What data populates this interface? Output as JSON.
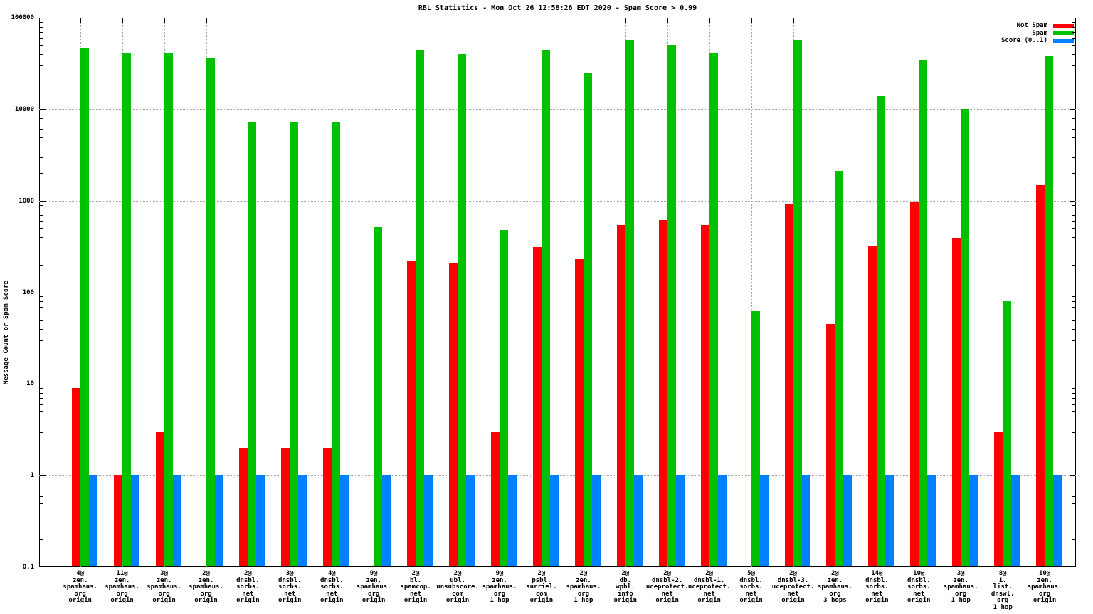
{
  "title": "RBL Statistics - Mon Oct 26 12:58:26 EDT 2020 - Spam Score > 0.99",
  "y_axis_label": "Message Count or Spam Score",
  "legend": [
    {
      "label": "Not Spam",
      "color": "#ff0000"
    },
    {
      "label": "Spam",
      "color": "#00c000"
    },
    {
      "label": "Score (0..1)",
      "color": "#0080ff"
    }
  ],
  "colors": {
    "not_spam": "#ff0000",
    "spam": "#00c000",
    "score": "#0080ff",
    "grid": "#a6a6a6",
    "border": "#000000",
    "background": "#ffffff"
  },
  "chart_data": {
    "type": "bar",
    "scale": "log",
    "ylim": [
      0.1,
      100000
    ],
    "y_ticks": [
      "0.1",
      "1",
      "10",
      "100",
      "1000",
      "10000",
      "100000"
    ],
    "grid": true,
    "legend_position": "top-right",
    "title": "RBL Statistics - Mon Oct 26 12:58:26 EDT 2020 - Spam Score > 0.99",
    "ylabel": "Message Count or Spam Score",
    "categories": [
      [
        "4@",
        "zen.",
        "spamhaus.",
        "org",
        "origin"
      ],
      [
        "11@",
        "zen.",
        "spamhaus.",
        "org",
        "origin"
      ],
      [
        "3@",
        "zen.",
        "spamhaus.",
        "org",
        "origin"
      ],
      [
        "2@",
        "zen.",
        "spamhaus.",
        "org",
        "origin"
      ],
      [
        "2@",
        "dnsbl.",
        "sorbs.",
        "net",
        "origin"
      ],
      [
        "3@",
        "dnsbl.",
        "sorbs.",
        "net",
        "origin"
      ],
      [
        "4@",
        "dnsbl.",
        "sorbs.",
        "net",
        "origin"
      ],
      [
        "9@",
        "zen.",
        "spamhaus.",
        "org",
        "origin"
      ],
      [
        "2@",
        "bl.",
        "spamcop.",
        "net",
        "origin"
      ],
      [
        "2@",
        "ubl.",
        "unsubscore.",
        "com",
        "origin"
      ],
      [
        "9@",
        "zen.",
        "spamhaus.",
        "org",
        "1 hop"
      ],
      [
        "2@",
        "psbl.",
        "surriel.",
        "com",
        "origin"
      ],
      [
        "2@",
        "zen.",
        "spamhaus.",
        "org",
        "1 hop"
      ],
      [
        "2@",
        "db.",
        "wpbl.",
        "info",
        "origin"
      ],
      [
        "2@",
        "dnsbl-2.",
        "uceprotect.",
        "net",
        "origin"
      ],
      [
        "2@",
        "dnsbl-1.",
        "uceprotect.",
        "net",
        "origin"
      ],
      [
        "5@",
        "dnsbl.",
        "sorbs.",
        "net",
        "origin"
      ],
      [
        "2@",
        "dnsbl-3.",
        "uceprotect.",
        "net",
        "origin"
      ],
      [
        "2@",
        "zen.",
        "spamhaus.",
        "org",
        "3 hops"
      ],
      [
        "14@",
        "dnsbl.",
        "sorbs.",
        "net",
        "origin"
      ],
      [
        "10@",
        "dnsbl.",
        "sorbs.",
        "net",
        "origin"
      ],
      [
        "3@",
        "zen.",
        "spamhaus.",
        "org",
        "1 hop"
      ],
      [
        "8@",
        "1.",
        "list.",
        "dnswl.",
        "org",
        "1 hop"
      ],
      [
        "10@",
        "zen.",
        "spamhaus.",
        "org",
        "origin"
      ]
    ],
    "series": [
      {
        "name": "Not Spam",
        "color": "#ff0000",
        "values": [
          9,
          1,
          3,
          0,
          2,
          2,
          2,
          0,
          220,
          210,
          3,
          310,
          230,
          550,
          610,
          550,
          0,
          920,
          45,
          320,
          970,
          390,
          3,
          1500
        ]
      },
      {
        "name": "Spam",
        "color": "#00c000",
        "values": [
          47000,
          42000,
          42000,
          36000,
          7400,
          7400,
          7400,
          520,
          45000,
          40000,
          490,
          44000,
          25000,
          58000,
          50000,
          41000,
          62,
          58000,
          2100,
          14000,
          34000,
          10000,
          80,
          38000
        ]
      },
      {
        "name": "Score (0..1)",
        "color": "#0080ff",
        "values": [
          1,
          1,
          1,
          1,
          1,
          1,
          1,
          1,
          1,
          1,
          1,
          1,
          1,
          1,
          1,
          1,
          1,
          1,
          1,
          1,
          1,
          1,
          1,
          1
        ]
      }
    ]
  }
}
